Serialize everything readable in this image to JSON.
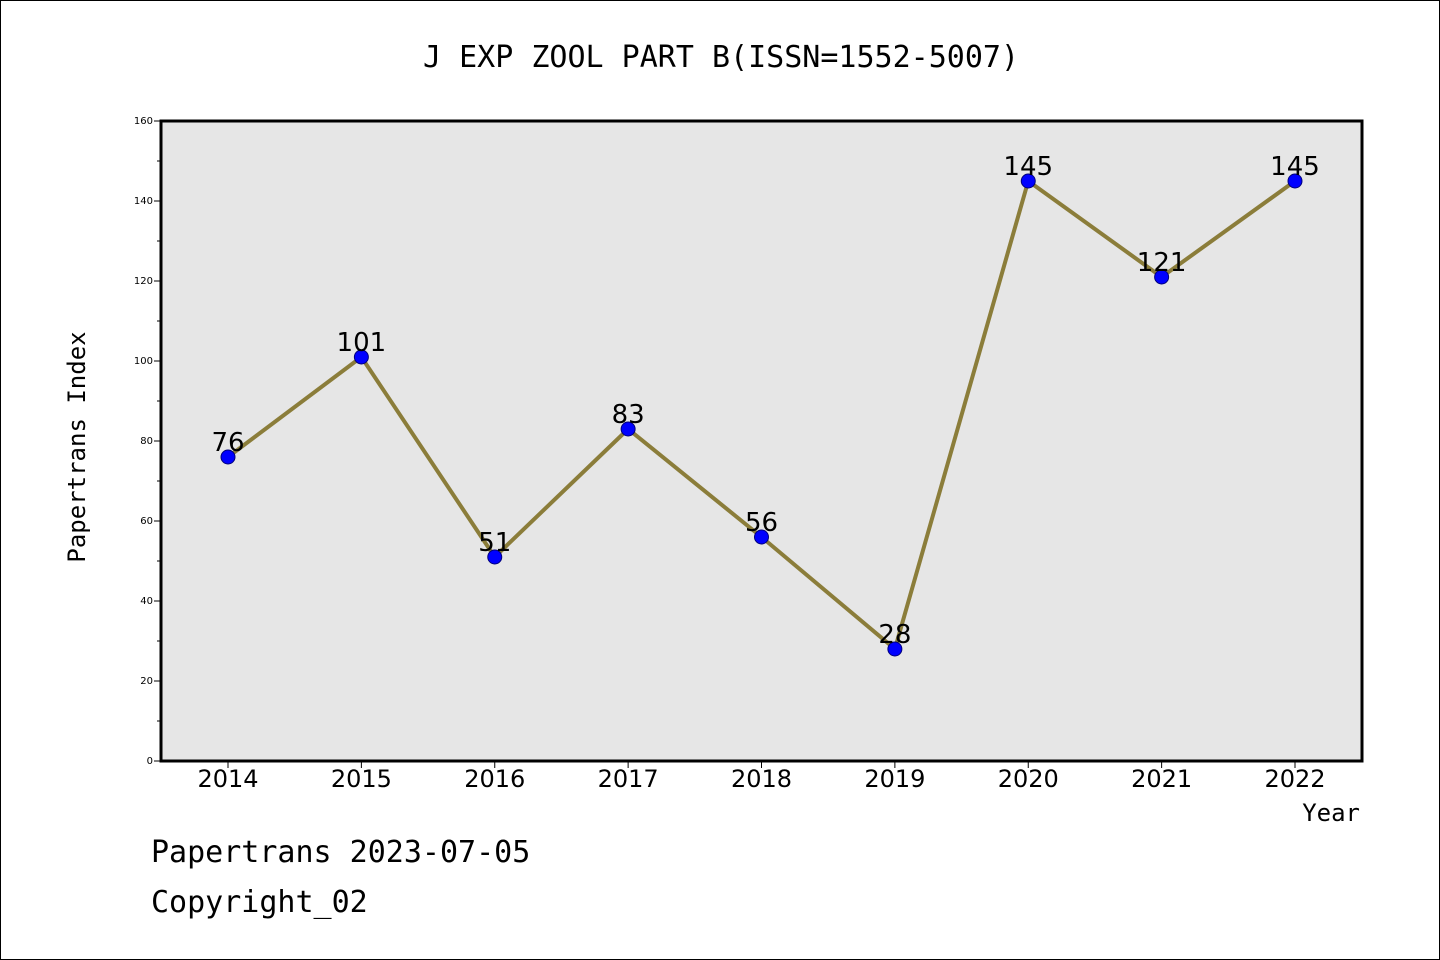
{
  "chart_data": {
    "type": "line",
    "title": "J EXP ZOOL PART B(ISSN=1552-5007)",
    "xlabel": "Year",
    "ylabel": "Papertrans Index",
    "categories": [
      "2014",
      "2015",
      "2016",
      "2017",
      "2018",
      "2019",
      "2020",
      "2021",
      "2022"
    ],
    "series": [
      {
        "values": [
          76,
          101,
          51,
          83,
          56,
          28,
          145,
          121,
          145
        ]
      }
    ],
    "ylim": [
      0,
      160
    ],
    "yticks": [
      0,
      20,
      40,
      60,
      80,
      100,
      120,
      140,
      160
    ],
    "grid": false,
    "colors": {
      "line": "#8B7D3A",
      "marker": "#0000FF",
      "plot_background": "#E6E6E6"
    }
  },
  "footer": {
    "line1": "Papertrans 2023-07-05",
    "line2": "Copyright_02"
  }
}
